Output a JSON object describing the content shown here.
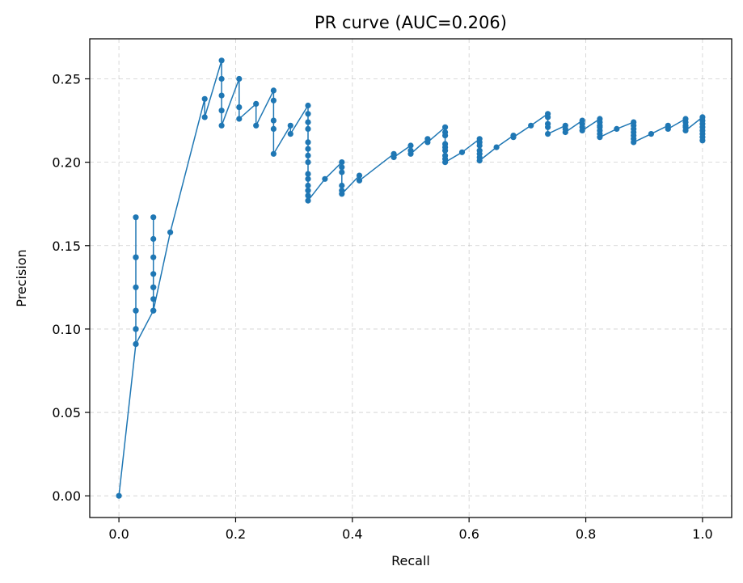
{
  "chart_data": {
    "type": "line",
    "title": "PR curve (AUC=0.206)",
    "xlabel": "Recall",
    "ylabel": "Precision",
    "xlim": [
      -0.05,
      1.05
    ],
    "ylim": [
      -0.013,
      0.274
    ],
    "xticks": [
      "0.0",
      "0.2",
      "0.4",
      "0.6",
      "0.8",
      "1.0"
    ],
    "yticks": [
      "0.00",
      "0.05",
      "0.10",
      "0.15",
      "0.20",
      "0.25"
    ],
    "grid": true,
    "series": [
      {
        "color": "#1f77b4",
        "marker": "circle",
        "points": [
          [
            0.0,
            0.0
          ],
          [
            0.029,
            0.091
          ],
          [
            0.029,
            0.1
          ],
          [
            0.029,
            0.111
          ],
          [
            0.029,
            0.125
          ],
          [
            0.029,
            0.143
          ],
          [
            0.029,
            0.167
          ],
          [
            0.029,
            0.143
          ],
          [
            0.029,
            0.111
          ],
          [
            0.029,
            0.1
          ],
          [
            0.029,
            0.091
          ],
          [
            0.059,
            0.111
          ],
          [
            0.059,
            0.118
          ],
          [
            0.059,
            0.125
          ],
          [
            0.059,
            0.133
          ],
          [
            0.059,
            0.143
          ],
          [
            0.059,
            0.154
          ],
          [
            0.059,
            0.167
          ],
          [
            0.059,
            0.125
          ],
          [
            0.059,
            0.111
          ],
          [
            0.088,
            0.158
          ],
          [
            0.147,
            0.238
          ],
          [
            0.147,
            0.227
          ],
          [
            0.176,
            0.261
          ],
          [
            0.176,
            0.25
          ],
          [
            0.176,
            0.24
          ],
          [
            0.176,
            0.231
          ],
          [
            0.176,
            0.222
          ],
          [
            0.206,
            0.25
          ],
          [
            0.206,
            0.233
          ],
          [
            0.206,
            0.226
          ],
          [
            0.235,
            0.235
          ],
          [
            0.235,
            0.222
          ],
          [
            0.265,
            0.243
          ],
          [
            0.265,
            0.237
          ],
          [
            0.265,
            0.225
          ],
          [
            0.265,
            0.22
          ],
          [
            0.265,
            0.205
          ],
          [
            0.294,
            0.222
          ],
          [
            0.294,
            0.217
          ],
          [
            0.324,
            0.234
          ],
          [
            0.324,
            0.229
          ],
          [
            0.324,
            0.224
          ],
          [
            0.324,
            0.22
          ],
          [
            0.324,
            0.212
          ],
          [
            0.324,
            0.208
          ],
          [
            0.324,
            0.204
          ],
          [
            0.324,
            0.2
          ],
          [
            0.324,
            0.193
          ],
          [
            0.324,
            0.19
          ],
          [
            0.324,
            0.186
          ],
          [
            0.324,
            0.183
          ],
          [
            0.324,
            0.18
          ],
          [
            0.324,
            0.177
          ],
          [
            0.353,
            0.19
          ],
          [
            0.382,
            0.2
          ],
          [
            0.382,
            0.197
          ],
          [
            0.382,
            0.194
          ],
          [
            0.382,
            0.186
          ],
          [
            0.382,
            0.183
          ],
          [
            0.382,
            0.181
          ],
          [
            0.412,
            0.192
          ],
          [
            0.412,
            0.189
          ],
          [
            0.471,
            0.205
          ],
          [
            0.471,
            0.203
          ],
          [
            0.5,
            0.21
          ],
          [
            0.5,
            0.207
          ],
          [
            0.5,
            0.205
          ],
          [
            0.529,
            0.214
          ],
          [
            0.529,
            0.212
          ],
          [
            0.559,
            0.221
          ],
          [
            0.559,
            0.218
          ],
          [
            0.559,
            0.216
          ],
          [
            0.559,
            0.211
          ],
          [
            0.559,
            0.209
          ],
          [
            0.559,
            0.207
          ],
          [
            0.559,
            0.204
          ],
          [
            0.559,
            0.202
          ],
          [
            0.559,
            0.2
          ],
          [
            0.588,
            0.206
          ],
          [
            0.618,
            0.214
          ],
          [
            0.618,
            0.212
          ],
          [
            0.618,
            0.21
          ],
          [
            0.618,
            0.207
          ],
          [
            0.618,
            0.205
          ],
          [
            0.618,
            0.203
          ],
          [
            0.618,
            0.201
          ],
          [
            0.647,
            0.209
          ],
          [
            0.676,
            0.216
          ],
          [
            0.676,
            0.215
          ],
          [
            0.706,
            0.222
          ],
          [
            0.735,
            0.229
          ],
          [
            0.735,
            0.227
          ],
          [
            0.735,
            0.223
          ],
          [
            0.735,
            0.221
          ],
          [
            0.735,
            0.217
          ],
          [
            0.765,
            0.222
          ],
          [
            0.765,
            0.22
          ],
          [
            0.765,
            0.218
          ],
          [
            0.794,
            0.225
          ],
          [
            0.794,
            0.223
          ],
          [
            0.794,
            0.221
          ],
          [
            0.794,
            0.219
          ],
          [
            0.824,
            0.226
          ],
          [
            0.824,
            0.224
          ],
          [
            0.824,
            0.222
          ],
          [
            0.824,
            0.221
          ],
          [
            0.824,
            0.219
          ],
          [
            0.824,
            0.217
          ],
          [
            0.824,
            0.215
          ],
          [
            0.853,
            0.22
          ],
          [
            0.882,
            0.224
          ],
          [
            0.882,
            0.222
          ],
          [
            0.882,
            0.22
          ],
          [
            0.882,
            0.218
          ],
          [
            0.882,
            0.216
          ],
          [
            0.882,
            0.214
          ],
          [
            0.882,
            0.212
          ],
          [
            0.912,
            0.217
          ],
          [
            0.941,
            0.222
          ],
          [
            0.941,
            0.22
          ],
          [
            0.971,
            0.226
          ],
          [
            0.971,
            0.224
          ],
          [
            0.971,
            0.222
          ],
          [
            0.971,
            0.221
          ],
          [
            0.971,
            0.219
          ],
          [
            1.0,
            0.227
          ],
          [
            1.0,
            0.225
          ],
          [
            1.0,
            0.223
          ],
          [
            1.0,
            0.221
          ],
          [
            1.0,
            0.219
          ],
          [
            1.0,
            0.217
          ],
          [
            1.0,
            0.215
          ],
          [
            1.0,
            0.213
          ]
        ]
      }
    ]
  }
}
